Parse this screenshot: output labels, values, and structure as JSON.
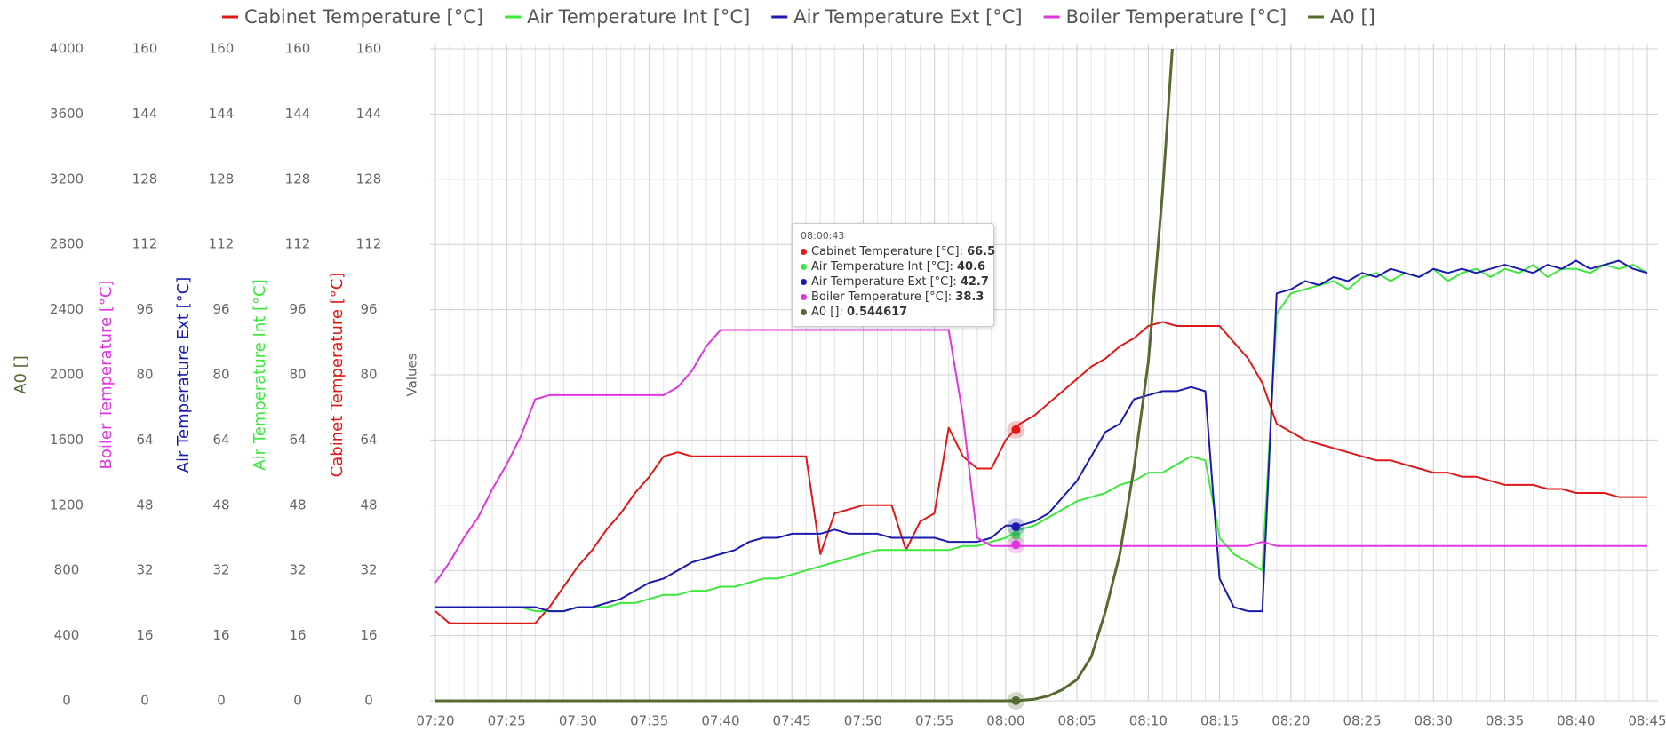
{
  "chart_data": {
    "type": "line",
    "values_label": "Values",
    "axes": [
      {
        "title": "A0 []",
        "color": "#556b2f",
        "lim": [
          0,
          4000
        ],
        "ticks": [
          0,
          400,
          800,
          1200,
          1600,
          2000,
          2400,
          2800,
          3200,
          3600,
          4000
        ]
      },
      {
        "title": "Boiler Temperature [°C]",
        "color": "#e035e0",
        "lim": [
          0,
          160
        ],
        "ticks": [
          0,
          16,
          32,
          48,
          64,
          80,
          96,
          112,
          128,
          144,
          160
        ]
      },
      {
        "title": "Air Temperature Ext [°C]",
        "color": "#1a1aaf",
        "lim": [
          0,
          160
        ],
        "ticks": [
          0,
          16,
          32,
          48,
          64,
          80,
          96,
          112,
          128,
          144,
          160
        ]
      },
      {
        "title": "Air Temperature Int [°C]",
        "color": "#3de83d",
        "lim": [
          0,
          160
        ],
        "ticks": [
          0,
          16,
          32,
          48,
          64,
          80,
          96,
          112,
          128,
          144,
          160
        ]
      },
      {
        "title": "Cabinet Temperature [°C]",
        "color": "#e01818",
        "lim": [
          0,
          160
        ],
        "ticks": [
          0,
          16,
          32,
          48,
          64,
          80,
          96,
          112,
          128,
          144,
          160
        ]
      }
    ],
    "xlim": [
      "07:20",
      "08:45"
    ],
    "xticks": [
      "07:20",
      "07:25",
      "07:30",
      "07:35",
      "07:40",
      "07:45",
      "07:50",
      "07:55",
      "08:00",
      "08:05",
      "08:10",
      "08:15",
      "08:20",
      "08:25",
      "08:30",
      "08:35",
      "08:40",
      "08:45"
    ],
    "x": [
      "07:20",
      "07:21",
      "07:22",
      "07:23",
      "07:24",
      "07:25",
      "07:26",
      "07:27",
      "07:28",
      "07:29",
      "07:30",
      "07:31",
      "07:32",
      "07:33",
      "07:34",
      "07:35",
      "07:36",
      "07:37",
      "07:38",
      "07:39",
      "07:40",
      "07:41",
      "07:42",
      "07:43",
      "07:44",
      "07:45",
      "07:46",
      "07:47",
      "07:48",
      "07:49",
      "07:50",
      "07:51",
      "07:52",
      "07:53",
      "07:54",
      "07:55",
      "07:56",
      "07:57",
      "07:58",
      "07:59",
      "08:00",
      "08:01",
      "08:02",
      "08:03",
      "08:04",
      "08:05",
      "08:06",
      "08:07",
      "08:08",
      "08:09",
      "08:10",
      "08:11",
      "08:12",
      "08:13",
      "08:14",
      "08:15",
      "08:16",
      "08:17",
      "08:18",
      "08:19",
      "08:20",
      "08:21",
      "08:22",
      "08:23",
      "08:24",
      "08:25",
      "08:26",
      "08:27",
      "08:28",
      "08:29",
      "08:30",
      "08:31",
      "08:32",
      "08:33",
      "08:34",
      "08:35",
      "08:36",
      "08:37",
      "08:38",
      "08:39",
      "08:40",
      "08:41",
      "08:42",
      "08:43",
      "08:44",
      "08:45"
    ],
    "series": [
      {
        "name": "Cabinet Temperature [°C]",
        "color": "#e01818",
        "axis": 4,
        "values": [
          22,
          19,
          19,
          19,
          19,
          19,
          19,
          19,
          23,
          28,
          33,
          37,
          42,
          46,
          51,
          55,
          60,
          61,
          60,
          60,
          60,
          60,
          60,
          60,
          60,
          60,
          60,
          36,
          46,
          47,
          48,
          48,
          48,
          37,
          44,
          46,
          67,
          60,
          57,
          57,
          64,
          68,
          70,
          73,
          76,
          79,
          82,
          84,
          87,
          89,
          92,
          93,
          92,
          92,
          92,
          92,
          88,
          84,
          78,
          68,
          66,
          64,
          63,
          62,
          61,
          60,
          59,
          59,
          58,
          57,
          56,
          56,
          55,
          55,
          54,
          53,
          53,
          53,
          52,
          52,
          51,
          51,
          51,
          50,
          50,
          50
        ]
      },
      {
        "name": "Air Temperature Int [°C]",
        "color": "#3de83d",
        "axis": 3,
        "values": [
          23,
          23,
          23,
          23,
          23,
          23,
          23,
          22,
          22,
          22,
          23,
          23,
          23,
          24,
          24,
          25,
          26,
          26,
          27,
          27,
          28,
          28,
          29,
          30,
          30,
          31,
          32,
          33,
          34,
          35,
          36,
          37,
          37,
          37,
          37,
          37,
          37,
          38,
          38,
          39,
          40,
          42,
          43,
          45,
          47,
          49,
          50,
          51,
          53,
          54,
          56,
          56,
          58,
          60,
          59,
          40,
          36,
          34,
          32,
          95,
          100,
          101,
          102,
          103,
          101,
          104,
          105,
          103,
          105,
          104,
          106,
          103,
          105,
          106,
          104,
          106,
          105,
          107,
          104,
          106,
          106,
          105,
          107,
          106,
          107,
          105
        ]
      },
      {
        "name": "Air Temperature Ext [°C]",
        "color": "#1a1aaf",
        "axis": 2,
        "values": [
          23,
          23,
          23,
          23,
          23,
          23,
          23,
          23,
          22,
          22,
          23,
          23,
          24,
          25,
          27,
          29,
          30,
          32,
          34,
          35,
          36,
          37,
          39,
          40,
          40,
          41,
          41,
          41,
          42,
          41,
          41,
          41,
          40,
          40,
          40,
          40,
          39,
          39,
          39,
          40,
          43,
          43,
          44,
          46,
          50,
          54,
          60,
          66,
          68,
          74,
          75,
          76,
          76,
          77,
          76,
          30,
          23,
          22,
          22,
          100,
          101,
          103,
          102,
          104,
          103,
          105,
          104,
          106,
          105,
          104,
          106,
          105,
          106,
          105,
          106,
          107,
          106,
          105,
          107,
          106,
          108,
          106,
          107,
          108,
          106,
          105
        ]
      },
      {
        "name": "Boiler Temperature [°C]",
        "color": "#e035e0",
        "axis": 1,
        "values": [
          29,
          34,
          40,
          45,
          52,
          58,
          65,
          74,
          75,
          75,
          75,
          75,
          75,
          75,
          75,
          75,
          75,
          77,
          81,
          87,
          91,
          91,
          91,
          91,
          91,
          91,
          91,
          91,
          91,
          91,
          91,
          91,
          91,
          91,
          91,
          91,
          91,
          70,
          40,
          38,
          38,
          38,
          38,
          38,
          38,
          38,
          38,
          38,
          38,
          38,
          38,
          38,
          38,
          38,
          38,
          38,
          38,
          38,
          39,
          38,
          38,
          38,
          38,
          38,
          38,
          38,
          38,
          38,
          38,
          38,
          38,
          38,
          38,
          38,
          38,
          38,
          38,
          38,
          38,
          38,
          38,
          38,
          38,
          38,
          38,
          38
        ]
      },
      {
        "name": "A0 []",
        "color": "#556b2f",
        "axis": 0,
        "values": [
          0,
          0,
          0,
          0,
          0,
          0,
          0,
          0,
          0,
          0,
          0,
          0,
          0,
          0,
          0,
          0,
          0,
          0,
          0,
          0,
          0,
          0,
          0,
          0,
          0,
          0,
          0,
          0,
          0,
          0,
          0,
          0,
          0,
          0,
          0,
          0,
          0,
          0,
          0,
          0,
          0,
          2,
          10,
          30,
          70,
          130,
          270,
          550,
          900,
          1430,
          2080,
          3120,
          4400,
          null,
          null,
          null,
          null,
          null,
          null,
          null,
          null,
          null,
          null,
          null,
          null,
          null,
          null,
          null,
          null,
          null,
          null,
          null,
          null,
          null,
          null,
          null,
          null,
          null,
          null,
          null,
          null,
          null,
          null,
          null,
          null,
          null
        ]
      }
    ],
    "tooltip": {
      "time": "08:00:43",
      "values": [
        66.5,
        40.6,
        42.7,
        38.3,
        0.544617
      ]
    }
  }
}
